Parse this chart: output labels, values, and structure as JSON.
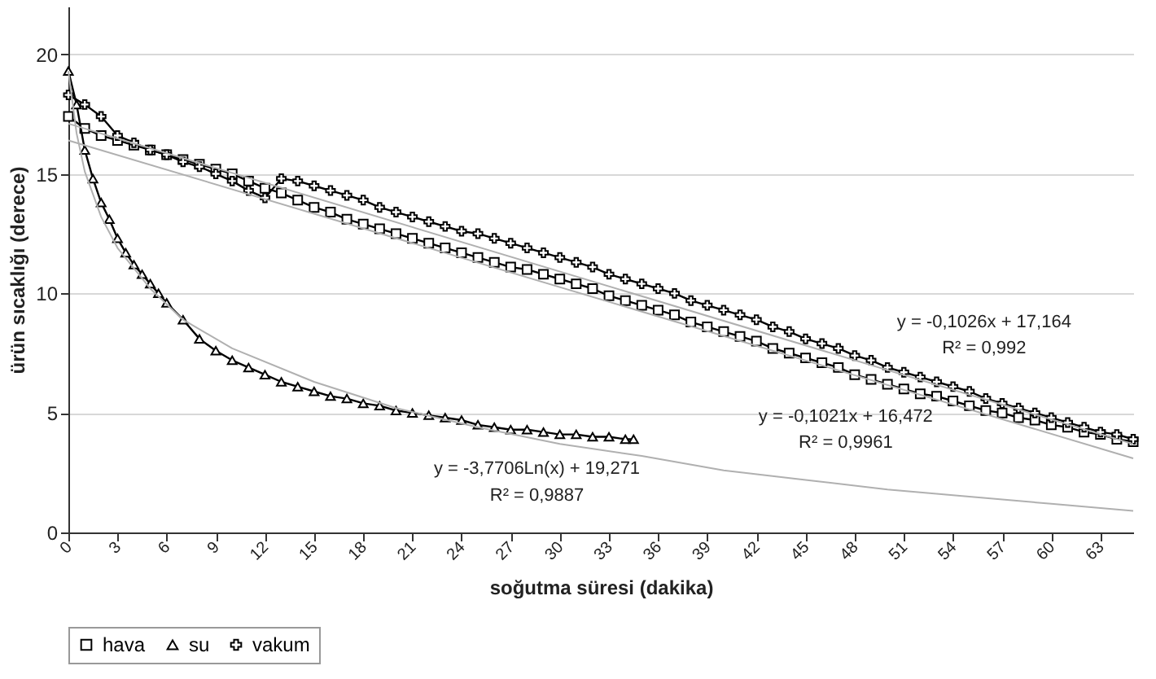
{
  "chart_data": {
    "type": "line",
    "xlabel": "soğutma süresi (dakika)",
    "ylabel": "ürün sıcaklığı (derece)",
    "xlim": [
      0,
      65
    ],
    "ylim": [
      0,
      22
    ],
    "xticks": [
      0,
      3,
      6,
      9,
      12,
      15,
      18,
      21,
      24,
      27,
      30,
      33,
      36,
      39,
      42,
      45,
      48,
      51,
      54,
      57,
      60,
      63
    ],
    "yticks": [
      0,
      5,
      10,
      15,
      20
    ],
    "grid": "y",
    "legend": "bottom",
    "series": [
      {
        "name": "hava",
        "color": "#000000",
        "marker": "square",
        "x": [
          0,
          1,
          2,
          3,
          4,
          5,
          6,
          7,
          8,
          9,
          10,
          11,
          12,
          13,
          14,
          15,
          16,
          17,
          18,
          19,
          20,
          21,
          22,
          23,
          24,
          25,
          26,
          27,
          28,
          29,
          30,
          31,
          32,
          33,
          34,
          35,
          36,
          37,
          38,
          39,
          40,
          41,
          42,
          43,
          44,
          45,
          46,
          47,
          48,
          49,
          50,
          51,
          52,
          53,
          54,
          55,
          56,
          57,
          58,
          59,
          60,
          61,
          62,
          63,
          64,
          65
        ],
        "values": [
          17.4,
          16.9,
          16.6,
          16.4,
          16.2,
          16.0,
          15.8,
          15.6,
          15.4,
          15.2,
          15.0,
          14.7,
          14.4,
          14.2,
          13.9,
          13.6,
          13.4,
          13.1,
          12.9,
          12.7,
          12.5,
          12.3,
          12.1,
          11.9,
          11.7,
          11.5,
          11.3,
          11.1,
          11.0,
          10.8,
          10.6,
          10.4,
          10.2,
          9.9,
          9.7,
          9.5,
          9.3,
          9.1,
          8.8,
          8.6,
          8.4,
          8.2,
          8.0,
          7.7,
          7.5,
          7.3,
          7.1,
          6.9,
          6.6,
          6.4,
          6.2,
          6.0,
          5.8,
          5.7,
          5.5,
          5.3,
          5.1,
          5.0,
          4.8,
          4.7,
          4.5,
          4.4,
          4.2,
          4.1,
          3.9,
          3.8
        ]
      },
      {
        "name": "su",
        "color": "#000000",
        "marker": "triangle",
        "x": [
          0,
          0.5,
          1,
          1.5,
          2,
          2.5,
          3,
          3.5,
          4,
          4.5,
          5,
          5.5,
          6,
          7,
          8,
          9,
          10,
          11,
          12,
          13,
          14,
          15,
          16,
          17,
          18,
          19,
          20,
          21,
          22,
          23,
          24,
          25,
          26,
          27,
          28,
          29,
          30,
          31,
          32,
          33,
          34,
          34.5
        ],
        "values": [
          19.3,
          17.9,
          16.0,
          14.8,
          13.8,
          13.1,
          12.3,
          11.7,
          11.2,
          10.8,
          10.4,
          10.0,
          9.6,
          8.9,
          8.1,
          7.6,
          7.2,
          6.9,
          6.6,
          6.3,
          6.1,
          5.9,
          5.7,
          5.6,
          5.4,
          5.3,
          5.1,
          5.0,
          4.9,
          4.8,
          4.7,
          4.5,
          4.4,
          4.3,
          4.3,
          4.2,
          4.1,
          4.1,
          4.0,
          4.0,
          3.9,
          3.9
        ]
      },
      {
        "name": "vakum",
        "color": "#000000",
        "marker": "cross",
        "x": [
          0,
          1,
          2,
          3,
          4,
          5,
          6,
          7,
          8,
          9,
          10,
          11,
          12,
          13,
          14,
          15,
          16,
          17,
          18,
          19,
          20,
          21,
          22,
          23,
          24,
          25,
          26,
          27,
          28,
          29,
          30,
          31,
          32,
          33,
          34,
          35,
          36,
          37,
          38,
          39,
          40,
          41,
          42,
          43,
          44,
          45,
          46,
          47,
          48,
          49,
          50,
          51,
          52,
          53,
          54,
          55,
          56,
          57,
          58,
          59,
          60,
          61,
          62,
          63,
          64,
          65
        ],
        "values": [
          18.3,
          17.9,
          17.4,
          16.6,
          16.3,
          16.0,
          15.8,
          15.5,
          15.3,
          15.0,
          14.7,
          14.3,
          14.0,
          14.8,
          14.7,
          14.5,
          14.3,
          14.1,
          13.9,
          13.6,
          13.4,
          13.2,
          13.0,
          12.8,
          12.6,
          12.5,
          12.3,
          12.1,
          11.9,
          11.7,
          11.5,
          11.3,
          11.1,
          10.8,
          10.6,
          10.4,
          10.2,
          10.0,
          9.7,
          9.5,
          9.3,
          9.1,
          8.9,
          8.6,
          8.4,
          8.1,
          7.9,
          7.7,
          7.4,
          7.2,
          6.9,
          6.7,
          6.5,
          6.3,
          6.1,
          5.9,
          5.6,
          5.4,
          5.2,
          5.0,
          4.8,
          4.6,
          4.4,
          4.2,
          4.1,
          3.9
        ]
      },
      {
        "color": "#b0b0b0",
        "marker": "none",
        "x": [
          0,
          65
        ],
        "values": [
          16.4,
          3.1
        ]
      },
      {
        "color": "#b0b0b0",
        "marker": "none",
        "x": [
          0,
          65
        ],
        "values": [
          17.1,
          3.7
        ]
      },
      {
        "color": "#b0b0b0",
        "marker": "none",
        "x": [
          0,
          0.5,
          1,
          2,
          3,
          5,
          7,
          10,
          15,
          20,
          25,
          30,
          35,
          40,
          45,
          50,
          55,
          60,
          65
        ],
        "values": [
          19.3,
          16.7,
          15.1,
          13.2,
          11.9,
          10.2,
          8.9,
          7.7,
          6.3,
          5.2,
          4.4,
          3.7,
          3.2,
          2.6,
          2.2,
          1.8,
          1.5,
          1.2,
          0.9
        ]
      }
    ],
    "annotations": [
      "y = -0,1026x + 17,164",
      "R² = 0,992",
      "y = -0,1021x + 16,472",
      "R² = 0,9961",
      "y = -3,7706Ln(x) + 19,271",
      "R² = 0,9887"
    ]
  }
}
